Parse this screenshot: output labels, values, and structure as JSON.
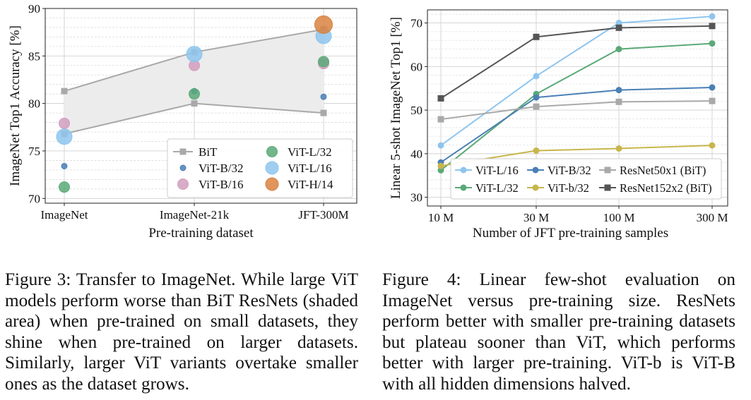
{
  "figure3": {
    "caption": "Figure 3:  Transfer to ImageNet.  While large ViT models perform worse than BiT ResNets (shaded area) when pre-trained on small datasets, they shine when pre-trained on larger datasets. Similarly, larger ViT variants overtake smaller ones as the dataset grows.",
    "chart_data": {
      "type": "scatter",
      "xlabel": "Pre-training dataset",
      "ylabel": "ImageNet Top1 Accuracy [%]",
      "categories": [
        "ImageNet",
        "ImageNet-21k",
        "JFT-300M"
      ],
      "yticks": [
        "70",
        "75",
        "80",
        "85",
        "90"
      ],
      "ylim": [
        69.5,
        90
      ],
      "grid": true,
      "legend_position": "lower-right",
      "shaded_area": "BiT",
      "series": [
        {
          "name": "BiT",
          "marker": "square",
          "color": "#a9a9a9",
          "values": [
            [
              81.3,
              76.8
            ],
            [
              85.4,
              80.0
            ],
            [
              87.8,
              79.0
            ]
          ]
        },
        {
          "name": "ViT-B/32",
          "marker": "circle",
          "color": "#4a7fb5",
          "values": [
            73.4,
            81.3,
            80.7
          ]
        },
        {
          "name": "ViT-B/16",
          "marker": "circle",
          "color": "#d29ebe",
          "values": [
            77.9,
            84.0,
            84.2
          ]
        },
        {
          "name": "ViT-L/32",
          "marker": "circle",
          "color": "#5aa978",
          "values": [
            71.2,
            81.0,
            84.4
          ]
        },
        {
          "name": "ViT-L/16",
          "marker": "circle",
          "color": "#8ec5ef",
          "values": [
            76.5,
            85.2,
            87.1
          ]
        },
        {
          "name": "ViT-H/14",
          "marker": "circle",
          "color": "#d9823f",
          "values": [
            null,
            null,
            88.3
          ]
        }
      ]
    }
  },
  "figure4": {
    "caption": "Figure 4: Linear few-shot evaluation on ImageNet versus pre-training size.  ResNets perform better with smaller pre-training datasets but plateau sooner than ViT, which performs better with larger pre-training. ViT-b is ViT-B with all hidden dimensions halved.",
    "chart_data": {
      "type": "line",
      "xlabel": "Number of JFT pre-training samples",
      "ylabel": "Linear 5-shot ImageNet Top1 [%]",
      "x": [
        "10 M",
        "30 M",
        "100 M",
        "300 M"
      ],
      "x_scale": "log",
      "yticks": [
        "30",
        "40",
        "50",
        "60",
        "70"
      ],
      "ylim": [
        28,
        73
      ],
      "grid": true,
      "legend_position": "lower-right",
      "series": [
        {
          "name": "ViT-L/16",
          "color": "#8ec5ef",
          "marker": "circle",
          "values": [
            41.9,
            57.8,
            70.0,
            71.5
          ]
        },
        {
          "name": "ViT-L/32",
          "color": "#5aa978",
          "marker": "circle",
          "values": [
            36.2,
            53.7,
            64.0,
            65.3
          ]
        },
        {
          "name": "ViT-B/32",
          "color": "#4a7fb5",
          "marker": "circle",
          "values": [
            38.0,
            52.9,
            54.6,
            55.2
          ]
        },
        {
          "name": "ViT-b/32",
          "color": "#c7b64b",
          "marker": "circle",
          "values": [
            37.2,
            40.7,
            41.2,
            41.9
          ]
        },
        {
          "name": "ResNet50x1 (BiT)",
          "color": "#a9a9a9",
          "marker": "square",
          "values": [
            47.9,
            50.8,
            51.9,
            52.1
          ]
        },
        {
          "name": "ResNet152x2 (BiT)",
          "color": "#555555",
          "marker": "square",
          "values": [
            52.7,
            66.8,
            68.9,
            69.3
          ]
        }
      ]
    }
  }
}
